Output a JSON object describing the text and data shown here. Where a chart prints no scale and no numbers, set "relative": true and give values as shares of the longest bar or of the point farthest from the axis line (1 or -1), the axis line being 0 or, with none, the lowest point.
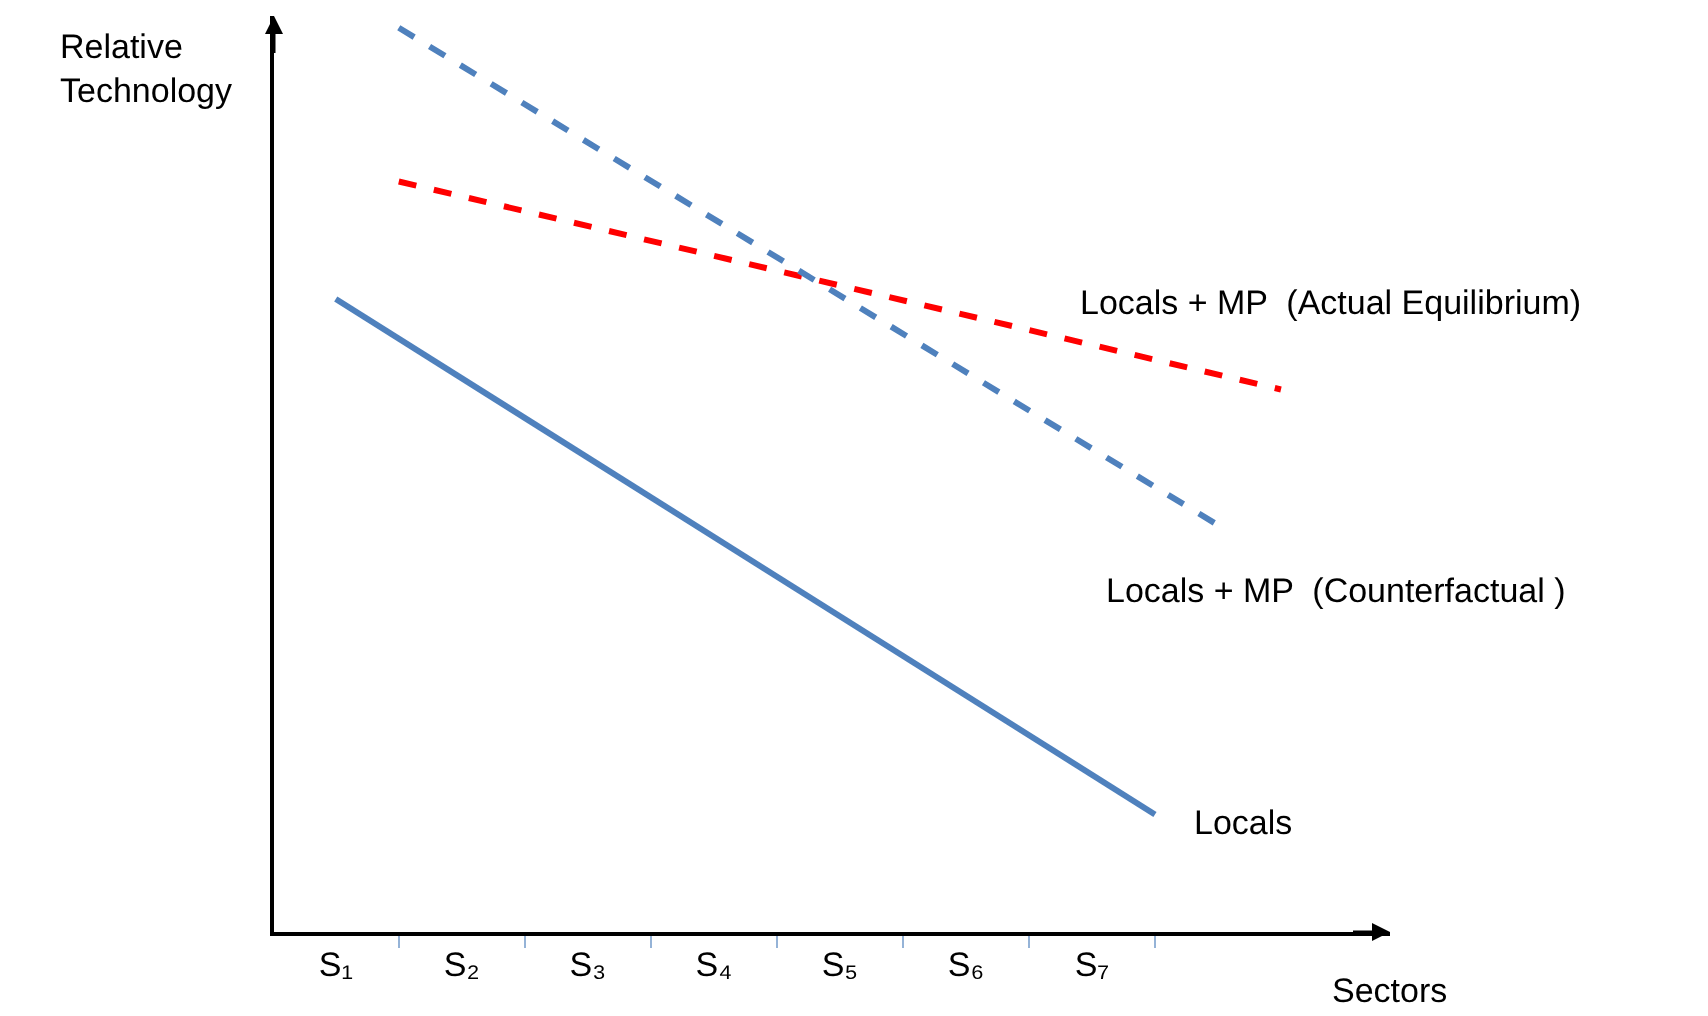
{
  "chart_data": {
    "type": "line",
    "relative": true,
    "xlabel": "Sectors",
    "ylabel": "Relative Technology",
    "categories": [
      "S₁",
      null,
      "S₂",
      null,
      "S₃",
      null,
      "S₄",
      null,
      "S₅",
      null,
      "S₆",
      null,
      "S₇",
      null,
      null,
      null
    ],
    "legend": false,
    "marker": "none",
    "series": [
      {
        "name": "Locals",
        "color": "#4f81bd",
        "line_style": "solid",
        "values": [
          0.7,
          null,
          null,
          null,
          null,
          null,
          null,
          null,
          null,
          null,
          null,
          null,
          null,
          0.13,
          null,
          null
        ]
      },
      {
        "name": "Locals + MP  (Actual Equilibrium)",
        "color": "#ff0000",
        "line_style": "dashed",
        "values": [
          null,
          0.83,
          null,
          null,
          null,
          null,
          null,
          null,
          null,
          null,
          null,
          null,
          null,
          null,
          null,
          0.6
        ]
      },
      {
        "name": "Locals + MP  (Counterfactual )",
        "color": "#4f81bd",
        "line_style": "dashed",
        "values": [
          null,
          1.0,
          null,
          null,
          null,
          null,
          null,
          null,
          null,
          null,
          null,
          null,
          null,
          null,
          0.45,
          null
        ]
      }
    ]
  }
}
